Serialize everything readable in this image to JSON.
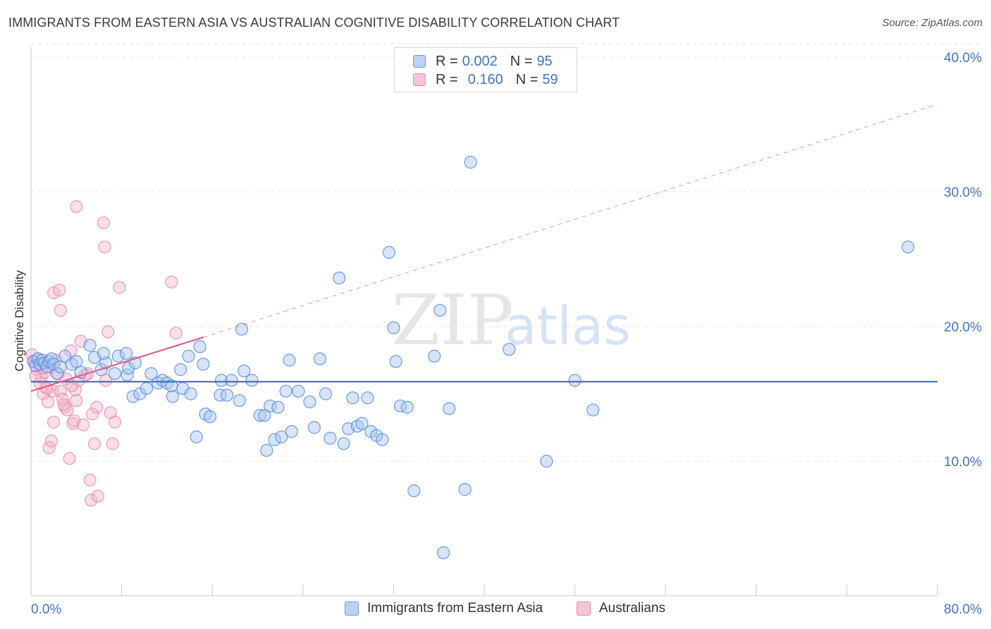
{
  "title": "IMMIGRANTS FROM EASTERN ASIA VS AUSTRALIAN COGNITIVE DISABILITY CORRELATION CHART",
  "source": "Source: ZipAtlas.com",
  "colors": {
    "blue": "#4a86e8",
    "blue_fill": "#a9c4ef",
    "blue_line": "#2f6fd0",
    "pink": "#e87fa3",
    "pink_fill": "#f4b6cb",
    "pink_line": "#e0608c",
    "tick_text": "#4472c4",
    "grid": "#e4e4e4"
  },
  "legend": {
    "rows": [
      {
        "r_label": "R =",
        "r_value": "0.002",
        "n_label": "N =",
        "n_value": "95"
      },
      {
        "r_label": "R =",
        "r_value": "0.160",
        "n_label": "N =",
        "n_value": "59"
      }
    ]
  },
  "bottom_legend": {
    "series1": "Immigrants from Eastern Asia",
    "series2": "Australians"
  },
  "watermark": {
    "zip": "ZIP",
    "atlas": "atlas"
  },
  "chart_data": {
    "type": "scatter",
    "ylabel": "Cognitive Disability",
    "xlim": [
      0,
      80
    ],
    "ylim": [
      0,
      42
    ],
    "x_tick_labels": [
      "0.0%",
      "80.0%"
    ],
    "y_ticks": [
      10,
      20,
      30,
      40
    ],
    "y_tick_labels": [
      "10.0%",
      "20.0%",
      "30.0%",
      "40.0%"
    ],
    "grid": true,
    "legend_position": "top-center",
    "series": [
      {
        "name": "Immigrants from Eastern Asia",
        "color": "#4a86e8",
        "trend": {
          "x0": 0,
          "y0": 15.9,
          "x1": 80,
          "y1": 15.9,
          "style": "solid"
        },
        "points": [
          [
            0.2,
            17.4
          ],
          [
            0.4,
            17.1
          ],
          [
            0.6,
            17.6
          ],
          [
            0.8,
            17.2
          ],
          [
            1.0,
            17.5
          ],
          [
            1.2,
            17.3
          ],
          [
            1.4,
            17.0
          ],
          [
            1.6,
            17.4
          ],
          [
            1.8,
            17.6
          ],
          [
            2.0,
            17.2
          ],
          [
            2.3,
            16.5
          ],
          [
            2.6,
            17.0
          ],
          [
            3.0,
            17.8
          ],
          [
            3.6,
            17.2
          ],
          [
            4.0,
            17.4
          ],
          [
            4.4,
            16.6
          ],
          [
            5.2,
            18.6
          ],
          [
            5.6,
            17.7
          ],
          [
            6.2,
            16.8
          ],
          [
            6.6,
            17.3
          ],
          [
            6.4,
            18.0
          ],
          [
            7.4,
            16.5
          ],
          [
            7.7,
            17.8
          ],
          [
            8.5,
            16.4
          ],
          [
            8.4,
            18.0
          ],
          [
            9.0,
            14.8
          ],
          [
            8.6,
            16.9
          ],
          [
            9.2,
            17.3
          ],
          [
            9.6,
            15.0
          ],
          [
            10.2,
            15.4
          ],
          [
            10.6,
            16.5
          ],
          [
            11.2,
            15.8
          ],
          [
            11.6,
            16.0
          ],
          [
            12.0,
            15.8
          ],
          [
            12.5,
            14.8
          ],
          [
            12.4,
            15.6
          ],
          [
            13.2,
            16.8
          ],
          [
            13.4,
            15.4
          ],
          [
            13.9,
            17.8
          ],
          [
            14.1,
            15.0
          ],
          [
            14.9,
            18.5
          ],
          [
            15.2,
            17.2
          ],
          [
            14.6,
            11.8
          ],
          [
            15.4,
            13.5
          ],
          [
            15.8,
            13.3
          ],
          [
            16.7,
            14.9
          ],
          [
            16.8,
            16.0
          ],
          [
            17.3,
            14.9
          ],
          [
            17.7,
            16.0
          ],
          [
            18.4,
            14.5
          ],
          [
            18.6,
            19.8
          ],
          [
            18.8,
            16.7
          ],
          [
            19.5,
            16.0
          ],
          [
            20.2,
            13.4
          ],
          [
            20.6,
            13.4
          ],
          [
            20.8,
            10.8
          ],
          [
            21.1,
            14.1
          ],
          [
            21.5,
            11.6
          ],
          [
            21.8,
            14.0
          ],
          [
            22.1,
            11.8
          ],
          [
            22.5,
            15.2
          ],
          [
            22.8,
            17.5
          ],
          [
            23.0,
            12.2
          ],
          [
            23.6,
            15.2
          ],
          [
            24.6,
            14.4
          ],
          [
            25.0,
            12.5
          ],
          [
            25.5,
            17.6
          ],
          [
            26.0,
            15.0
          ],
          [
            26.4,
            11.7
          ],
          [
            27.2,
            23.6
          ],
          [
            27.6,
            11.3
          ],
          [
            28.0,
            12.4
          ],
          [
            28.4,
            14.7
          ],
          [
            28.8,
            12.6
          ],
          [
            29.2,
            12.8
          ],
          [
            29.7,
            14.7
          ],
          [
            30.0,
            12.2
          ],
          [
            30.5,
            11.9
          ],
          [
            31.0,
            11.6
          ],
          [
            31.6,
            25.5
          ],
          [
            32.0,
            19.9
          ],
          [
            32.2,
            17.4
          ],
          [
            32.6,
            14.1
          ],
          [
            33.2,
            14.0
          ],
          [
            33.8,
            7.8
          ],
          [
            35.6,
            17.8
          ],
          [
            36.1,
            21.2
          ],
          [
            36.4,
            3.2
          ],
          [
            36.9,
            13.9
          ],
          [
            38.3,
            7.9
          ],
          [
            38.8,
            32.2
          ],
          [
            42.2,
            18.3
          ],
          [
            45.5,
            10.0
          ],
          [
            48.0,
            16.0
          ],
          [
            49.6,
            13.8
          ],
          [
            77.4,
            25.9
          ]
        ]
      },
      {
        "name": "Australians",
        "color": "#e87fa3",
        "trend": {
          "x0": 0,
          "y0": 15.2,
          "x1": 15.2,
          "y1": 19.2,
          "style": "solid"
        },
        "trend_extension": {
          "x0": 15.2,
          "y0": 19.2,
          "x1": 80,
          "y1": 36.5,
          "style": "dashed"
        },
        "points": [
          [
            0.1,
            17.9
          ],
          [
            0.3,
            17.4
          ],
          [
            0.5,
            16.8
          ],
          [
            0.7,
            17.2
          ],
          [
            0.9,
            16.2
          ],
          [
            1.1,
            15.0
          ],
          [
            1.3,
            15.5
          ],
          [
            1.5,
            14.4
          ],
          [
            1.7,
            17.0
          ],
          [
            1.9,
            15.2
          ],
          [
            2.0,
            12.9
          ],
          [
            1.6,
            11.0
          ],
          [
            1.8,
            11.5
          ],
          [
            2.4,
            16.5
          ],
          [
            2.6,
            15.2
          ],
          [
            2.8,
            14.6
          ],
          [
            3.0,
            14.0
          ],
          [
            3.2,
            13.8
          ],
          [
            3.4,
            10.2
          ],
          [
            3.5,
            18.2
          ],
          [
            3.7,
            12.8
          ],
          [
            3.9,
            15.3
          ],
          [
            3.8,
            13.0
          ],
          [
            4.0,
            14.5
          ],
          [
            4.2,
            16.0
          ],
          [
            4.4,
            18.9
          ],
          [
            4.6,
            12.7
          ],
          [
            5.0,
            16.5
          ],
          [
            5.4,
            13.5
          ],
          [
            5.2,
            8.6
          ],
          [
            5.3,
            7.1
          ],
          [
            5.6,
            11.3
          ],
          [
            5.8,
            14.0
          ],
          [
            5.9,
            7.4
          ],
          [
            6.4,
            27.7
          ],
          [
            6.5,
            25.9
          ],
          [
            6.6,
            16.0
          ],
          [
            6.8,
            19.6
          ],
          [
            7.0,
            13.6
          ],
          [
            7.2,
            11.3
          ],
          [
            7.4,
            12.9
          ],
          [
            2.0,
            22.5
          ],
          [
            2.5,
            22.7
          ],
          [
            2.6,
            21.2
          ],
          [
            4.0,
            28.9
          ],
          [
            7.8,
            22.9
          ],
          [
            12.4,
            23.3
          ],
          [
            12.8,
            19.5
          ],
          [
            4.8,
            16.4
          ],
          [
            1.2,
            16.6
          ],
          [
            0.8,
            15.8
          ],
          [
            1.4,
            15.4
          ],
          [
            0.6,
            17.6
          ],
          [
            3.1,
            16.1
          ],
          [
            2.2,
            17.5
          ],
          [
            1.0,
            16.9
          ],
          [
            0.4,
            16.3
          ],
          [
            3.6,
            15.6
          ],
          [
            2.9,
            14.2
          ]
        ]
      }
    ]
  }
}
